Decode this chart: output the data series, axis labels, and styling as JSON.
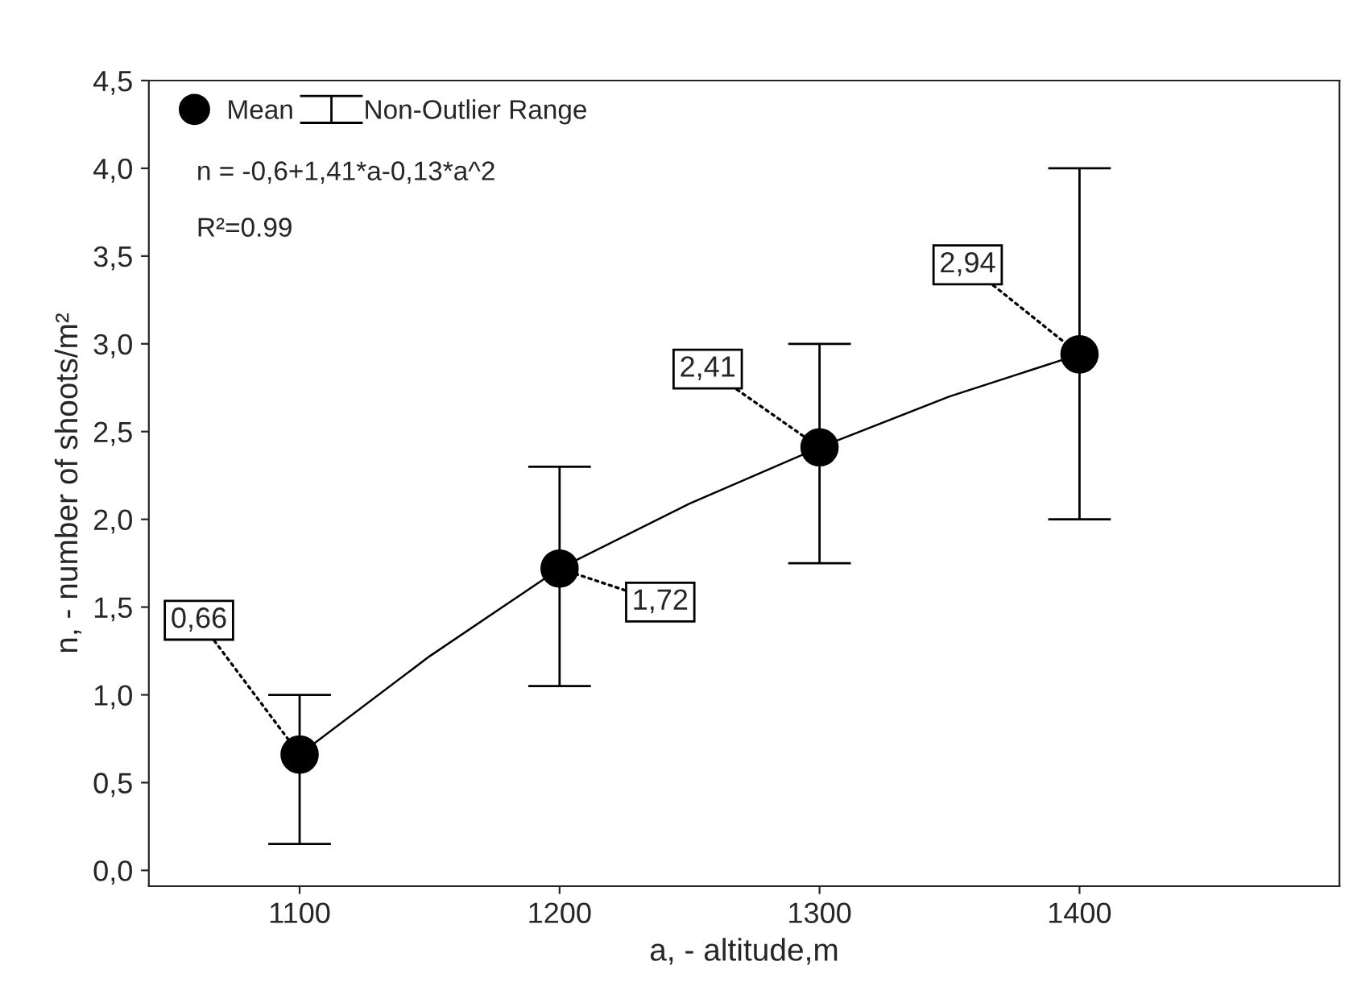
{
  "chart_data": {
    "type": "scatter",
    "xlabel": "a, - altitude,m",
    "ylabel": "n, - number of shoots/m²",
    "x": [
      1100,
      1200,
      1300,
      1400
    ],
    "series": [
      {
        "name": "Mean",
        "marker": "circle",
        "color": "#000000",
        "values": [
          0.66,
          1.72,
          2.41,
          2.94
        ],
        "errors": [
          [
            0.15,
            1.0
          ],
          [
            1.05,
            2.3
          ],
          [
            1.75,
            3.0
          ],
          [
            2.0,
            4.0
          ]
        ],
        "value_labels": [
          "0,66",
          "1,72",
          "2,41",
          "2,94"
        ]
      },
      {
        "type": "line",
        "marker": "none",
        "color": "#000000",
        "x": [
          1100,
          1150,
          1200,
          1250,
          1300,
          1350,
          1400
        ],
        "values": [
          0.66,
          1.22,
          1.72,
          2.09,
          2.41,
          2.7,
          2.94
        ]
      }
    ],
    "line_style": "solid",
    "xlim": [
      1042,
      1500
    ],
    "xticks": [
      1100,
      1200,
      1300,
      1400
    ],
    "ylim": [
      -0.09,
      4.5
    ],
    "yticks": [
      {
        "value": 0,
        "label": "0,0"
      },
      {
        "value": 0.5,
        "label": "0,5"
      },
      {
        "value": 1,
        "label": "1,0"
      },
      {
        "value": 1.5,
        "label": "1,5"
      },
      {
        "value": 2,
        "label": "2,0"
      },
      {
        "value": 2.5,
        "label": "2,5"
      },
      {
        "value": 3,
        "label": "3,0"
      },
      {
        "value": 3.5,
        "label": "3,5"
      },
      {
        "value": 4,
        "label": "4,0"
      },
      {
        "value": 4.5,
        "label": "4,5"
      }
    ],
    "legend": "top left",
    "grid": false,
    "annotations": [
      "Non-Outlier Range",
      "n = -0,6+1,41*a-0,13*a^2",
      "R²=0.99"
    ]
  }
}
